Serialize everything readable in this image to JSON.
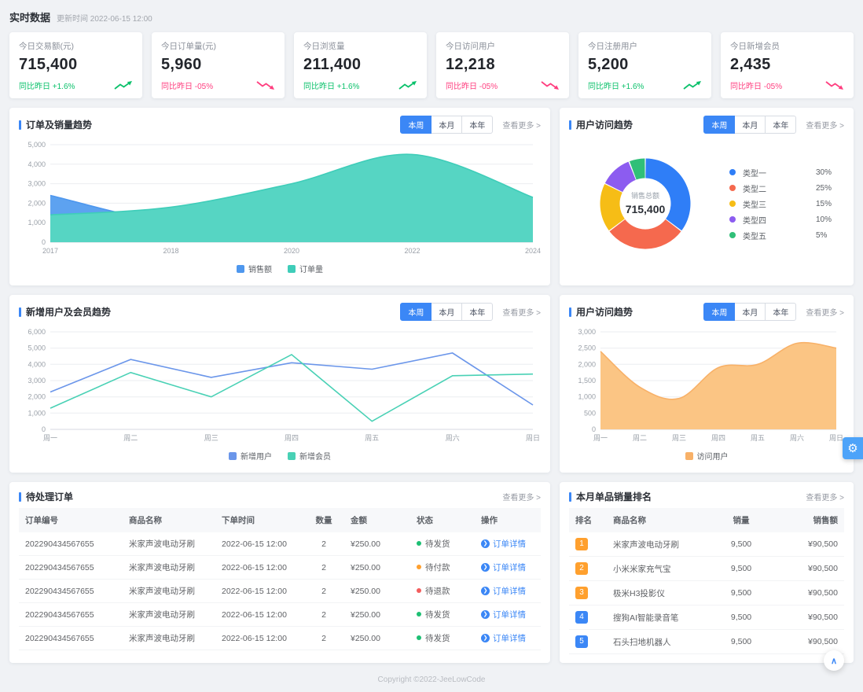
{
  "page": {
    "title": "实时数据",
    "update_time": "更新时间 2022-06-15 12:00",
    "footer": "Copyright ©2022-JeeLowCode"
  },
  "colors": {
    "accent": "#3b87f6",
    "up_green": "#0bc16b",
    "down_pink": "#ff3e7f",
    "warning_orange": "#ffa02e",
    "danger_red": "#f35d5d",
    "success_green": "#1dbf73"
  },
  "tabs": {
    "items": [
      "本周",
      "本月",
      "本年"
    ],
    "active": "本周"
  },
  "view_more": "查看更多 >",
  "stat_cards": [
    {
      "label": "今日交易额(元)",
      "value": "715,400",
      "trend_text": "同比昨日 +1.6%",
      "trend": "up"
    },
    {
      "label": "今日订单量(元)",
      "value": "5,960",
      "trend_text": "同比昨日 -05%",
      "trend": "down"
    },
    {
      "label": "今日浏览量",
      "value": "211,400",
      "trend_text": "同比昨日 +1.6%",
      "trend": "up"
    },
    {
      "label": "今日访问用户",
      "value": "12,218",
      "trend_text": "同比昨日 -05%",
      "trend": "down"
    },
    {
      "label": "今日注册用户",
      "value": "5,200",
      "trend_text": "同比昨日 +1.6%",
      "trend": "up"
    },
    {
      "label": "今日新增会员",
      "value": "2,435",
      "trend_text": "同比昨日 -05%",
      "trend": "down"
    }
  ],
  "panels": {
    "order_sales": {
      "title": "订单及销量趋势"
    },
    "donut": {
      "title": "用户访问趋势"
    },
    "new_users": {
      "title": "新增用户及会员趋势"
    },
    "visits": {
      "title": "用户访问趋势"
    },
    "pending_orders": {
      "title": "待处理订单",
      "columns": [
        "订单编号",
        "商品名称",
        "下单时间",
        "数量",
        "金额",
        "状态",
        "操作"
      ],
      "rows": [
        {
          "order_no": "202290434567655",
          "product": "米家声波电动牙刷",
          "time": "2022-06-15 12:00",
          "qty": "2",
          "amount": "¥250.00",
          "status": "待发货",
          "status_type": "success",
          "action": "订单详情"
        },
        {
          "order_no": "202290434567655",
          "product": "米家声波电动牙刷",
          "time": "2022-06-15 12:00",
          "qty": "2",
          "amount": "¥250.00",
          "status": "待付款",
          "status_type": "warning",
          "action": "订单详情"
        },
        {
          "order_no": "202290434567655",
          "product": "米家声波电动牙刷",
          "time": "2022-06-15 12:00",
          "qty": "2",
          "amount": "¥250.00",
          "status": "待退款",
          "status_type": "danger",
          "action": "订单详情"
        },
        {
          "order_no": "202290434567655",
          "product": "米家声波电动牙刷",
          "time": "2022-06-15 12:00",
          "qty": "2",
          "amount": "¥250.00",
          "status": "待发货",
          "status_type": "success",
          "action": "订单详情"
        },
        {
          "order_no": "202290434567655",
          "product": "米家声波电动牙刷",
          "time": "2022-06-15 12:00",
          "qty": "2",
          "amount": "¥250.00",
          "status": "待发货",
          "status_type": "success",
          "action": "订单详情"
        }
      ]
    },
    "ranking": {
      "title": "本月单品销量排名",
      "columns": [
        "排名",
        "商品名称",
        "销量",
        "销售额"
      ],
      "rows": [
        {
          "rank": "1",
          "badge": "orange",
          "product": "米家声波电动牙刷",
          "sales": "9,500",
          "amount": "¥90,500"
        },
        {
          "rank": "2",
          "badge": "orange",
          "product": "小米米家充气宝",
          "sales": "9,500",
          "amount": "¥90,500"
        },
        {
          "rank": "3",
          "badge": "orange",
          "product": "极米H3投影仪",
          "sales": "9,500",
          "amount": "¥90,500"
        },
        {
          "rank": "4",
          "badge": "blue",
          "product": "搜狗AI智能录音笔",
          "sales": "9,500",
          "amount": "¥90,500"
        },
        {
          "rank": "5",
          "badge": "blue",
          "product": "石头扫地机器人",
          "sales": "9,500",
          "amount": "¥90,500"
        }
      ]
    }
  },
  "chart_data": [
    {
      "name": "order_sales",
      "type": "area",
      "title": "订单及销量趋势",
      "categories": [
        "2017",
        "2018",
        "2020",
        "2022",
        "2024"
      ],
      "ylim": [
        0,
        5000
      ],
      "yticks": [
        0,
        1000,
        2000,
        3000,
        4000,
        5000
      ],
      "series": [
        {
          "name": "销售额",
          "color": "#4e97ee",
          "fill": "#5da2f0",
          "fill_opacity": 1,
          "smooth": true,
          "area": true,
          "values": [
            2400,
            1000,
            950,
            900,
            850
          ]
        },
        {
          "name": "订单量",
          "color": "#3fcdb9",
          "fill": "#56d5c3",
          "fill_opacity": 1,
          "smooth": true,
          "area": true,
          "values": [
            1400,
            1800,
            3000,
            4500,
            2300
          ]
        }
      ]
    },
    {
      "name": "user_type_donut",
      "type": "donut",
      "title": "用户访问趋势",
      "center_label": "销售总额",
      "center_value": "715,400",
      "labels": [
        "类型一",
        "类型二",
        "类型三",
        "类型四",
        "类型五"
      ],
      "values": [
        30,
        25,
        15,
        10,
        5
      ],
      "pcts": [
        "30%",
        "25%",
        "15%",
        "10%",
        "5%"
      ],
      "colors": [
        "#2f7ef7",
        "#f5694e",
        "#f6bd16",
        "#8c5cf0",
        "#30bf78"
      ]
    },
    {
      "name": "new_users",
      "type": "line",
      "title": "新增用户及会员趋势",
      "categories": [
        "周一",
        "周二",
        "周三",
        "周四",
        "周五",
        "周六",
        "周日"
      ],
      "ylim": [
        0,
        6000
      ],
      "yticks": [
        0,
        1000,
        2000,
        3000,
        4000,
        5000,
        6000
      ],
      "series": [
        {
          "name": "新增用户",
          "color": "#6b96ea",
          "smooth": false,
          "area": false,
          "values": [
            2300,
            4300,
            3200,
            4100,
            3700,
            4700,
            1500
          ]
        },
        {
          "name": "新增会员",
          "color": "#49d1b5",
          "smooth": false,
          "area": false,
          "values": [
            1300,
            3500,
            2000,
            4600,
            500,
            3300,
            3400
          ]
        }
      ]
    },
    {
      "name": "visits",
      "type": "area",
      "title": "用户访问趋势",
      "categories": [
        "周一",
        "周二",
        "周三",
        "周四",
        "周五",
        "周六",
        "周日"
      ],
      "ylim": [
        0,
        3000
      ],
      "yticks": [
        0,
        500,
        1000,
        1500,
        2000,
        2500,
        3000
      ],
      "series": [
        {
          "name": "访问用户",
          "color": "#f8b168",
          "fill": "#fbc584",
          "fill_opacity": 1,
          "smooth": true,
          "area": true,
          "values": [
            2400,
            1300,
            950,
            1900,
            2000,
            2650,
            2500
          ]
        }
      ]
    }
  ],
  "floating": {
    "gear": "⚙",
    "back_top": "∧"
  }
}
